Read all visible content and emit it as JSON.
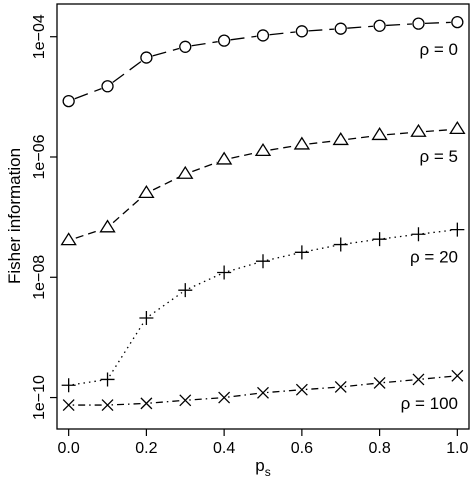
{
  "chart_data": {
    "type": "line",
    "title": "",
    "xlabel": "p",
    "xlabel_subscript": "s",
    "ylabel": "Fisher information",
    "x": [
      0.0,
      0.1,
      0.2,
      0.3,
      0.4,
      0.5,
      0.6,
      0.7,
      0.8,
      0.9,
      1.0
    ],
    "x_ticks": [
      0.0,
      0.2,
      0.4,
      0.6,
      0.8,
      1.0
    ],
    "x_tick_labels": [
      "0.0",
      "0.2",
      "0.4",
      "0.6",
      "0.8",
      "1.0"
    ],
    "xlim": [
      -0.03,
      1.03
    ],
    "y_scale": "log",
    "y_ticks": [
      1e-10,
      1e-08,
      1e-06,
      0.0001
    ],
    "y_tick_labels": [
      "1e−10",
      "1e−08",
      "1e−06",
      "1e−04"
    ],
    "ylim": [
      3e-11,
      0.00035
    ],
    "grid": false,
    "legend": "none",
    "series": [
      {
        "name": "ρ = 0",
        "marker": "circle",
        "line_style": "longdash",
        "values": [
          8.5e-06,
          1.5e-05,
          4.5e-05,
          6.8e-05,
          8.6e-05,
          0.000105,
          0.000123,
          0.000136,
          0.000152,
          0.000165,
          0.000175
        ]
      },
      {
        "name": "ρ = 5",
        "marker": "triangle",
        "line_style": "dashed",
        "values": [
          4.1e-08,
          6.7e-08,
          2.5e-07,
          5.2e-07,
          9e-07,
          1.25e-06,
          1.6e-06,
          1.9e-06,
          2.3e-06,
          2.6e-06,
          2.9e-06
        ]
      },
      {
        "name": "ρ = 20",
        "marker": "plus",
        "line_style": "dotted",
        "values": [
          1.6e-10,
          2e-10,
          2.1e-09,
          6.1e-09,
          1.2e-08,
          1.85e-08,
          2.6e-08,
          3.5e-08,
          4.3e-08,
          5.2e-08,
          6.2e-08
        ]
      },
      {
        "name": "ρ = 100",
        "marker": "cross",
        "line_style": "dotdash",
        "values": [
          7.5e-11,
          7.5e-11,
          8e-11,
          9e-11,
          1e-10,
          1.2e-10,
          1.35e-10,
          1.5e-10,
          1.75e-10,
          2e-10,
          2.3e-10
        ]
      }
    ]
  }
}
